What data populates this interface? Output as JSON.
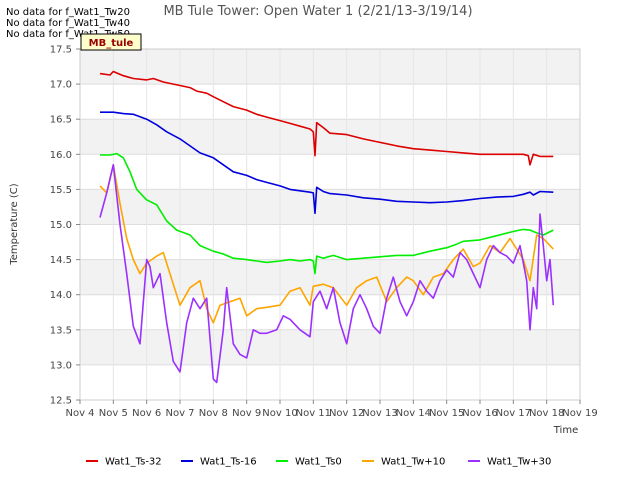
{
  "messages": [
    "No data for f_Wat1_Tw20",
    "No data for f_Wat1_Tw40",
    "No data for f_Wat1_Tw50"
  ],
  "site_label": "MB_tule",
  "chart_data": {
    "type": "line",
    "title": "MB Tule Tower: Open Water 1 (2/21/13-3/19/14)",
    "xlabel": "Time",
    "ylabel": "Temperature (C)",
    "x_ticks": [
      "Nov 4",
      "Nov 5",
      "Nov 6",
      "Nov 7",
      "Nov 8",
      "Nov 9",
      "Nov 10",
      "Nov 11",
      "Nov 12",
      "Nov 13",
      "Nov 14",
      "Nov 15",
      "Nov 16",
      "Nov 17",
      "Nov 18",
      "Nov 19"
    ],
    "xlim": [
      4,
      19
    ],
    "ylim": [
      12.5,
      17.5
    ],
    "y_ticks": [
      "12.5",
      "13.0",
      "13.5",
      "14.0",
      "14.5",
      "15.0",
      "15.5",
      "16.0",
      "16.5",
      "17.0",
      "17.5"
    ],
    "grid": true,
    "legend_position": "bottom",
    "series": [
      {
        "name": "Wat1_Ts-32",
        "color": "#dd0000",
        "x": [
          4.6,
          4.9,
          5.0,
          5.3,
          5.6,
          6.0,
          6.2,
          6.5,
          7.0,
          7.3,
          7.5,
          7.8,
          8.0,
          8.3,
          8.6,
          9.0,
          9.3,
          9.6,
          10.0,
          10.3,
          10.6,
          10.9,
          11.0,
          11.05,
          11.1,
          11.3,
          11.5,
          12.0,
          12.5,
          13.0,
          13.5,
          14.0,
          14.5,
          15.0,
          15.5,
          16.0,
          16.5,
          17.0,
          17.3,
          17.45,
          17.5,
          17.6,
          17.8,
          18.2
        ],
        "y": [
          17.15,
          17.13,
          17.18,
          17.12,
          17.08,
          17.06,
          17.08,
          17.03,
          16.98,
          16.95,
          16.9,
          16.87,
          16.82,
          16.75,
          16.68,
          16.63,
          16.57,
          16.53,
          16.48,
          16.44,
          16.4,
          16.36,
          16.32,
          15.98,
          16.45,
          16.38,
          16.3,
          16.28,
          16.22,
          16.17,
          16.12,
          16.08,
          16.06,
          16.04,
          16.02,
          16.0,
          16.0,
          16.0,
          16.0,
          15.98,
          15.85,
          16.0,
          15.97,
          15.97
        ]
      },
      {
        "name": "Wat1_Ts-16",
        "color": "#0000dd",
        "x": [
          4.6,
          5.0,
          5.3,
          5.6,
          6.0,
          6.3,
          6.6,
          7.0,
          7.3,
          7.6,
          8.0,
          8.3,
          8.6,
          9.0,
          9.3,
          9.6,
          10.0,
          10.3,
          10.6,
          10.9,
          11.0,
          11.05,
          11.1,
          11.3,
          11.5,
          12.0,
          12.5,
          13.0,
          13.5,
          14.0,
          14.5,
          15.0,
          15.5,
          16.0,
          16.5,
          17.0,
          17.3,
          17.5,
          17.6,
          17.8,
          18.2
        ],
        "y": [
          16.6,
          16.6,
          16.58,
          16.57,
          16.5,
          16.42,
          16.32,
          16.22,
          16.12,
          16.02,
          15.95,
          15.85,
          15.75,
          15.7,
          15.64,
          15.6,
          15.55,
          15.5,
          15.48,
          15.46,
          15.45,
          15.16,
          15.53,
          15.47,
          15.44,
          15.42,
          15.38,
          15.36,
          15.33,
          15.32,
          15.31,
          15.32,
          15.34,
          15.37,
          15.39,
          15.4,
          15.43,
          15.46,
          15.42,
          15.47,
          15.46
        ]
      },
      {
        "name": "Wat1_Ts0",
        "color": "#00ee00",
        "x": [
          4.6,
          4.9,
          5.1,
          5.3,
          5.5,
          5.7,
          6.0,
          6.3,
          6.6,
          6.9,
          7.3,
          7.6,
          8.0,
          8.3,
          8.6,
          9.0,
          9.3,
          9.6,
          10.0,
          10.3,
          10.6,
          10.9,
          11.0,
          11.05,
          11.1,
          11.3,
          11.6,
          12.0,
          12.5,
          13.0,
          13.5,
          14.0,
          14.5,
          15.0,
          15.3,
          15.5,
          16.0,
          16.5,
          17.0,
          17.3,
          17.5,
          17.7,
          17.9,
          18.2
        ],
        "y": [
          15.99,
          15.99,
          16.01,
          15.95,
          15.75,
          15.5,
          15.35,
          15.28,
          15.05,
          14.92,
          14.85,
          14.7,
          14.62,
          14.58,
          14.52,
          14.5,
          14.48,
          14.46,
          14.48,
          14.5,
          14.48,
          14.5,
          14.48,
          14.3,
          14.55,
          14.52,
          14.56,
          14.5,
          14.52,
          14.54,
          14.56,
          14.56,
          14.62,
          14.67,
          14.72,
          14.76,
          14.78,
          14.84,
          14.9,
          14.93,
          14.92,
          14.88,
          14.85,
          14.92
        ]
      },
      {
        "name": "Wat1_Tw+10",
        "color": "#ffa500",
        "x": [
          4.6,
          4.8,
          5.0,
          5.2,
          5.4,
          5.6,
          5.8,
          6.0,
          6.3,
          6.5,
          6.8,
          7.0,
          7.3,
          7.6,
          7.8,
          8.0,
          8.2,
          8.5,
          8.8,
          9.0,
          9.3,
          9.6,
          10.0,
          10.3,
          10.6,
          10.9,
          11.0,
          11.3,
          11.6,
          12.0,
          12.3,
          12.6,
          12.9,
          13.2,
          13.5,
          13.8,
          14.0,
          14.3,
          14.6,
          14.9,
          15.2,
          15.5,
          15.8,
          16.0,
          16.3,
          16.6,
          16.9,
          17.1,
          17.3,
          17.5,
          17.7,
          17.9,
          18.2
        ],
        "y": [
          15.55,
          15.45,
          15.85,
          15.3,
          14.8,
          14.5,
          14.3,
          14.45,
          14.55,
          14.6,
          14.15,
          13.85,
          14.1,
          14.2,
          13.8,
          13.6,
          13.85,
          13.9,
          13.95,
          13.7,
          13.8,
          13.82,
          13.85,
          14.05,
          14.1,
          13.85,
          14.12,
          14.15,
          14.1,
          13.85,
          14.1,
          14.2,
          14.25,
          13.9,
          14.1,
          14.25,
          14.2,
          14.0,
          14.25,
          14.3,
          14.5,
          14.65,
          14.4,
          14.45,
          14.7,
          14.6,
          14.8,
          14.65,
          14.5,
          14.2,
          14.85,
          14.8,
          14.65
        ]
      },
      {
        "name": "Wat1_Tw+30",
        "color": "#9b30ff",
        "x": [
          4.6,
          4.8,
          5.0,
          5.2,
          5.4,
          5.6,
          5.8,
          6.0,
          6.1,
          6.2,
          6.4,
          6.6,
          6.8,
          7.0,
          7.2,
          7.4,
          7.6,
          7.8,
          8.0,
          8.1,
          8.3,
          8.4,
          8.6,
          8.8,
          9.0,
          9.2,
          9.4,
          9.6,
          9.9,
          10.1,
          10.3,
          10.6,
          10.9,
          11.0,
          11.2,
          11.4,
          11.6,
          11.8,
          12.0,
          12.2,
          12.4,
          12.6,
          12.8,
          13.0,
          13.2,
          13.4,
          13.6,
          13.8,
          14.0,
          14.2,
          14.4,
          14.6,
          14.8,
          15.0,
          15.2,
          15.4,
          15.6,
          15.8,
          16.0,
          16.2,
          16.4,
          16.6,
          16.8,
          17.0,
          17.2,
          17.4,
          17.5,
          17.6,
          17.7,
          17.8,
          17.9,
          18.0,
          18.1,
          18.2
        ],
        "y": [
          15.1,
          15.45,
          15.85,
          15.0,
          14.3,
          13.55,
          13.3,
          14.5,
          14.4,
          14.1,
          14.3,
          13.6,
          13.05,
          12.9,
          13.6,
          13.95,
          13.8,
          13.95,
          12.8,
          12.75,
          13.5,
          14.1,
          13.3,
          13.15,
          13.1,
          13.5,
          13.45,
          13.45,
          13.5,
          13.7,
          13.65,
          13.5,
          13.4,
          13.9,
          14.05,
          13.8,
          14.1,
          13.6,
          13.3,
          13.8,
          14.0,
          13.8,
          13.55,
          13.45,
          13.95,
          14.25,
          13.9,
          13.7,
          13.9,
          14.2,
          14.05,
          13.95,
          14.2,
          14.35,
          14.25,
          14.6,
          14.5,
          14.3,
          14.1,
          14.5,
          14.7,
          14.6,
          14.55,
          14.45,
          14.7,
          14.2,
          13.5,
          14.1,
          13.8,
          15.15,
          14.7,
          14.2,
          14.5,
          13.85
        ]
      }
    ]
  }
}
